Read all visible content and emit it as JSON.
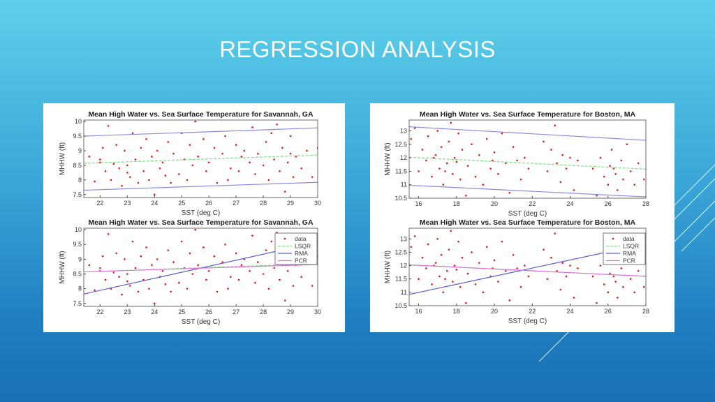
{
  "slide": {
    "title": "REGRESSION ANALYSIS"
  },
  "colors": {
    "data": "#e8141a",
    "lsqr": "#7ee07e",
    "rma": "#5a5ad8",
    "pcr": "#e070e0",
    "bounds": "#8a8ae8"
  },
  "datasets": {
    "savannah": [
      [
        21.6,
        8.8
      ],
      [
        21.8,
        7.95
      ],
      [
        22.0,
        8.6
      ],
      [
        22.1,
        9.1
      ],
      [
        22.2,
        8.3
      ],
      [
        22.3,
        9.85
      ],
      [
        22.4,
        8.0
      ],
      [
        22.5,
        8.55
      ],
      [
        22.6,
        9.2
      ],
      [
        22.7,
        8.4
      ],
      [
        22.8,
        7.8
      ],
      [
        22.9,
        9.0
      ],
      [
        23.0,
        8.5
      ],
      [
        23.1,
        8.1
      ],
      [
        23.2,
        9.6
      ],
      [
        23.3,
        8.7
      ],
      [
        23.4,
        7.9
      ],
      [
        23.5,
        9.1
      ],
      [
        23.6,
        8.3
      ],
      [
        23.7,
        9.4
      ],
      [
        23.8,
        8.0
      ],
      [
        23.9,
        8.8
      ],
      [
        24.0,
        7.5
      ],
      [
        24.1,
        9.0
      ],
      [
        24.2,
        8.4
      ],
      [
        24.3,
        8.6
      ],
      [
        24.5,
        9.3
      ],
      [
        24.6,
        7.9
      ],
      [
        24.7,
        8.9
      ],
      [
        24.9,
        8.2
      ],
      [
        25.0,
        9.6
      ],
      [
        25.1,
        8.7
      ],
      [
        25.2,
        8.0
      ],
      [
        25.3,
        9.2
      ],
      [
        25.4,
        8.5
      ],
      [
        25.5,
        10.0
      ],
      [
        25.6,
        8.8
      ],
      [
        25.8,
        9.4
      ],
      [
        25.9,
        8.3
      ],
      [
        26.0,
        8.6
      ],
      [
        26.2,
        9.1
      ],
      [
        26.3,
        7.9
      ],
      [
        26.5,
        8.9
      ],
      [
        26.6,
        9.5
      ],
      [
        26.8,
        8.4
      ],
      [
        27.0,
        9.2
      ],
      [
        27.1,
        8.3
      ],
      [
        27.2,
        8.8
      ],
      [
        27.3,
        9.0
      ],
      [
        27.5,
        8.6
      ],
      [
        27.6,
        9.8
      ],
      [
        27.7,
        8.2
      ],
      [
        27.8,
        8.9
      ],
      [
        28.0,
        8.5
      ],
      [
        28.1,
        9.3
      ],
      [
        28.2,
        8.0
      ],
      [
        28.4,
        8.7
      ],
      [
        28.5,
        9.9
      ],
      [
        28.6,
        8.3
      ],
      [
        28.7,
        9.1
      ],
      [
        28.8,
        7.6
      ],
      [
        28.9,
        8.6
      ],
      [
        29.0,
        9.5
      ],
      [
        29.1,
        8.1
      ],
      [
        29.2,
        8.8
      ],
      [
        29.4,
        8.4
      ],
      [
        29.6,
        9.0
      ],
      [
        29.8,
        8.1
      ],
      [
        30.0,
        9.1
      ],
      [
        22.0,
        8.7
      ],
      [
        23.0,
        8.25
      ],
      [
        24.4,
        8.15
      ],
      [
        26.7,
        8.0
      ],
      [
        28.3,
        9.6
      ],
      [
        29.0,
        8.9
      ]
    ],
    "boston": [
      [
        15.6,
        12.7
      ],
      [
        15.8,
        13.1
      ],
      [
        16.0,
        11.5
      ],
      [
        16.2,
        12.3
      ],
      [
        16.4,
        11.9
      ],
      [
        16.5,
        12.8
      ],
      [
        16.7,
        11.3
      ],
      [
        16.9,
        12.1
      ],
      [
        17.0,
        13.0
      ],
      [
        17.1,
        11.6
      ],
      [
        17.2,
        12.4
      ],
      [
        17.3,
        11.0
      ],
      [
        17.5,
        11.8
      ],
      [
        17.6,
        12.6
      ],
      [
        17.7,
        13.3
      ],
      [
        17.8,
        11.4
      ],
      [
        17.9,
        12.0
      ],
      [
        18.0,
        11.85
      ],
      [
        18.1,
        12.9
      ],
      [
        18.2,
        11.2
      ],
      [
        18.3,
        12.3
      ],
      [
        18.5,
        10.6
      ],
      [
        18.6,
        11.7
      ],
      [
        18.8,
        12.5
      ],
      [
        19.0,
        11.3
      ],
      [
        19.2,
        12.1
      ],
      [
        19.4,
        11.0
      ],
      [
        19.6,
        12.7
      ],
      [
        19.8,
        11.6
      ],
      [
        20.0,
        12.2
      ],
      [
        20.2,
        11.4
      ],
      [
        20.4,
        12.9
      ],
      [
        20.6,
        11.8
      ],
      [
        20.8,
        10.7
      ],
      [
        21.0,
        12.4
      ],
      [
        21.2,
        11.9
      ],
      [
        21.4,
        11.2
      ],
      [
        21.6,
        12.0
      ],
      [
        21.8,
        11.6
      ],
      [
        22.6,
        12.6
      ],
      [
        22.8,
        11.5
      ],
      [
        23.0,
        12.3
      ],
      [
        23.2,
        13.2
      ],
      [
        23.3,
        11.8
      ],
      [
        23.5,
        11.1
      ],
      [
        23.6,
        12.1
      ],
      [
        23.8,
        11.6
      ],
      [
        24.0,
        12.0
      ],
      [
        24.2,
        10.8
      ],
      [
        24.4,
        11.9
      ],
      [
        25.2,
        11.6
      ],
      [
        25.4,
        10.6
      ],
      [
        25.6,
        12.0
      ],
      [
        25.8,
        11.3
      ],
      [
        26.0,
        11.0
      ],
      [
        26.1,
        11.7
      ],
      [
        26.2,
        12.3
      ],
      [
        26.4,
        11.4
      ],
      [
        26.5,
        10.8
      ],
      [
        26.7,
        11.9
      ],
      [
        26.8,
        11.2
      ],
      [
        27.0,
        12.5
      ],
      [
        27.2,
        11.5
      ],
      [
        27.4,
        11.0
      ],
      [
        27.6,
        11.8
      ],
      [
        27.9,
        11.2
      ],
      [
        16.8,
        12.0
      ],
      [
        17.4,
        11.5
      ],
      [
        19.9,
        11.9
      ],
      [
        26.3,
        11.6
      ]
    ]
  },
  "chart_data": [
    {
      "type": "scatter",
      "title": "Mean High Water vs. Sea Surface Temperature for Savannah, GA",
      "xlabel": "SST (deg C)",
      "ylabel": "MHHW (ft)",
      "xlim": [
        21.4,
        30
      ],
      "ylim": [
        7.4,
        10.05
      ],
      "xticks": [
        "22",
        "23",
        "24",
        "25",
        "26",
        "27",
        "28",
        "29",
        "30"
      ],
      "yticks": [
        "7.5",
        "8",
        "8.5",
        "9",
        "9.5",
        "10"
      ],
      "dataset": "savannah",
      "legend": null,
      "lines": [
        {
          "role": "lsqr",
          "x": [
            21.4,
            30
          ],
          "y": [
            8.57,
            8.85
          ]
        },
        {
          "role": "bounds",
          "x": [
            21.4,
            30
          ],
          "y": [
            9.5,
            9.78
          ]
        },
        {
          "role": "bounds",
          "x": [
            21.4,
            30
          ],
          "y": [
            7.65,
            7.92
          ]
        }
      ]
    },
    {
      "type": "scatter",
      "title": "Mean High Water vs. Sea Surface Temperature for Boston, MA",
      "xlabel": "SST (deg C)",
      "ylabel": "MHHW (ft)",
      "xlim": [
        15.5,
        28
      ],
      "ylim": [
        10.5,
        13.4
      ],
      "xticks": [
        "16",
        "18",
        "20",
        "22",
        "24",
        "26",
        "28"
      ],
      "yticks": [
        "10.5",
        "11",
        "11.5",
        "12",
        "12.5",
        "13"
      ],
      "dataset": "boston",
      "legend": null,
      "lines": [
        {
          "role": "lsqr",
          "x": [
            15.5,
            28
          ],
          "y": [
            12.02,
            11.58
          ]
        },
        {
          "role": "bounds",
          "x": [
            15.5,
            28
          ],
          "y": [
            13.15,
            12.65
          ]
        },
        {
          "role": "bounds",
          "x": [
            15.5,
            28
          ],
          "y": [
            10.98,
            10.55
          ]
        }
      ]
    },
    {
      "type": "scatter",
      "title": "Mean High Water vs. Sea Surface Temperature for Savannah, GA",
      "xlabel": "SST (deg C)",
      "ylabel": "MHHW (ft)",
      "xlim": [
        21.4,
        30
      ],
      "ylim": [
        7.4,
        10.05
      ],
      "xticks": [
        "22",
        "23",
        "24",
        "25",
        "26",
        "27",
        "28",
        "29",
        "30"
      ],
      "yticks": [
        "7.5",
        "8",
        "8.5",
        "9",
        "9.5",
        "10"
      ],
      "dataset": "savannah",
      "legend": [
        "data",
        "LSQR",
        "RMA",
        "PCR"
      ],
      "legend_position": "top-right",
      "lines": [
        {
          "role": "lsqr",
          "x": [
            21.4,
            30
          ],
          "y": [
            8.57,
            8.85
          ]
        },
        {
          "role": "rma",
          "x": [
            21.4,
            30
          ],
          "y": [
            7.82,
            9.58
          ]
        },
        {
          "role": "pcr",
          "x": [
            21.4,
            30
          ],
          "y": [
            8.57,
            8.82
          ]
        }
      ]
    },
    {
      "type": "scatter",
      "title": "Mean High Water vs. Sea Surface Temperature for Boston, MA",
      "xlabel": "SST (deg C)",
      "ylabel": "MHHW (ft)",
      "xlim": [
        15.5,
        28
      ],
      "ylim": [
        10.5,
        13.4
      ],
      "xticks": [
        "16",
        "18",
        "20",
        "22",
        "24",
        "26",
        "28"
      ],
      "yticks": [
        "10.5",
        "11",
        "11.5",
        "12",
        "12.5",
        "13"
      ],
      "dataset": "boston",
      "legend": [
        "data",
        "LSQR",
        "RMA",
        "PCR"
      ],
      "legend_position": "top-right",
      "lines": [
        {
          "role": "lsqr",
          "x": [
            15.5,
            28
          ],
          "y": [
            12.02,
            11.6
          ]
        },
        {
          "role": "rma",
          "x": [
            15.5,
            28
          ],
          "y": [
            10.92,
            12.82
          ]
        },
        {
          "role": "pcr",
          "x": [
            15.5,
            28
          ],
          "y": [
            12.03,
            11.6
          ]
        }
      ]
    }
  ]
}
